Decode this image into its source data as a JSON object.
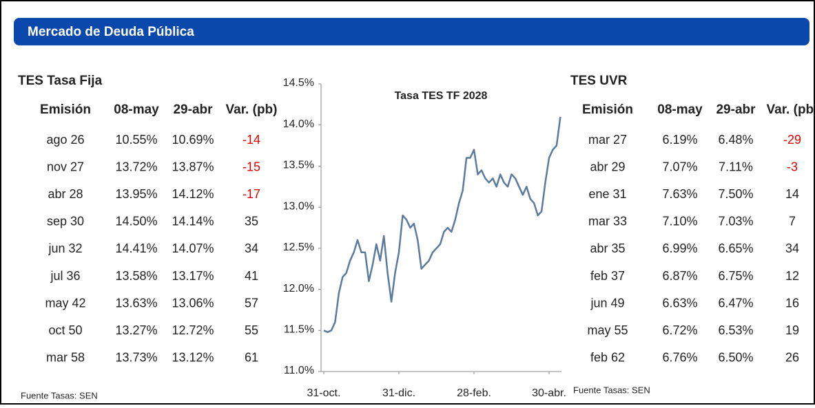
{
  "header": {
    "title": "Mercado de Deuda Pública"
  },
  "left_table": {
    "title": "TES Tasa Fija",
    "columns": [
      "Emisión",
      "08-may",
      "29-abr",
      "Var. (pb)"
    ],
    "rows": [
      [
        "ago 26",
        "10.55%",
        "10.69%",
        -14
      ],
      [
        "nov 27",
        "13.72%",
        "13.87%",
        -15
      ],
      [
        "abr 28",
        "13.95%",
        "14.12%",
        -17
      ],
      [
        "sep 30",
        "14.50%",
        "14.14%",
        35
      ],
      [
        "jun 32",
        "14.41%",
        "14.07%",
        34
      ],
      [
        "jul 36",
        "13.58%",
        "13.17%",
        41
      ],
      [
        "may 42",
        "13.63%",
        "13.06%",
        57
      ],
      [
        "oct 50",
        "13.27%",
        "12.72%",
        55
      ],
      [
        "mar 58",
        "13.73%",
        "13.12%",
        61
      ]
    ],
    "source": "Fuente Tasas: SEN"
  },
  "chart_data": {
    "type": "line",
    "title": "Tasa TES TF 2028",
    "series": [
      {
        "name": "Tasa TES TF 2028",
        "color": "#5b7a9d",
        "values": [
          11.5,
          11.48,
          11.5,
          11.6,
          11.95,
          12.15,
          12.2,
          12.35,
          12.45,
          12.6,
          12.45,
          12.45,
          12.1,
          12.3,
          12.55,
          12.35,
          12.65,
          12.2,
          11.85,
          12.2,
          12.45,
          12.9,
          12.85,
          12.75,
          12.8,
          12.6,
          12.25,
          12.3,
          12.35,
          12.45,
          12.5,
          12.55,
          12.7,
          12.75,
          12.7,
          12.85,
          13.05,
          13.2,
          13.6,
          13.6,
          13.7,
          13.4,
          13.45,
          13.35,
          13.3,
          13.35,
          13.25,
          13.4,
          13.3,
          13.25,
          13.4,
          13.35,
          13.25,
          13.15,
          13.25,
          13.1,
          13.05,
          12.9,
          12.95,
          13.3,
          13.6,
          13.7,
          13.75,
          14.1
        ]
      }
    ],
    "ylim": [
      11,
      14.5
    ],
    "yticks": [
      {
        "value": 11,
        "label": "11.0%"
      },
      {
        "value": 11.5,
        "label": "11.5%"
      },
      {
        "value": 12,
        "label": "12.0%"
      },
      {
        "value": 12.5,
        "label": "12.5%"
      },
      {
        "value": 13,
        "label": "13.0%"
      },
      {
        "value": 13.5,
        "label": "13.5%"
      },
      {
        "value": 14,
        "label": "14.0%"
      },
      {
        "value": 14.5,
        "label": "14.5%"
      }
    ],
    "xticks": [
      {
        "value": 0,
        "label": "31-oct."
      },
      {
        "value": 20,
        "label": "31-dic."
      },
      {
        "value": 40,
        "label": "28-feb."
      },
      {
        "value": 60,
        "label": "30-abr."
      }
    ]
  },
  "right_table": {
    "title": "TES UVR",
    "columns": [
      "Emisión",
      "08-may",
      "29-abr",
      "Var. (pb)"
    ],
    "rows": [
      [
        "mar 27",
        "6.19%",
        "6.48%",
        -29
      ],
      [
        "abr 29",
        "7.07%",
        "7.11%",
        -3
      ],
      [
        "ene 31",
        "7.63%",
        "7.50%",
        14
      ],
      [
        "mar 33",
        "7.10%",
        "7.03%",
        7
      ],
      [
        "abr 35",
        "6.99%",
        "6.65%",
        34
      ],
      [
        "feb 37",
        "6.87%",
        "6.75%",
        12
      ],
      [
        "jun 49",
        "6.63%",
        "6.47%",
        16
      ],
      [
        "may 55",
        "6.72%",
        "6.53%",
        19
      ],
      [
        "feb 62",
        "6.76%",
        "6.50%",
        26
      ]
    ],
    "source": "Fuente Tasas: SEN"
  }
}
